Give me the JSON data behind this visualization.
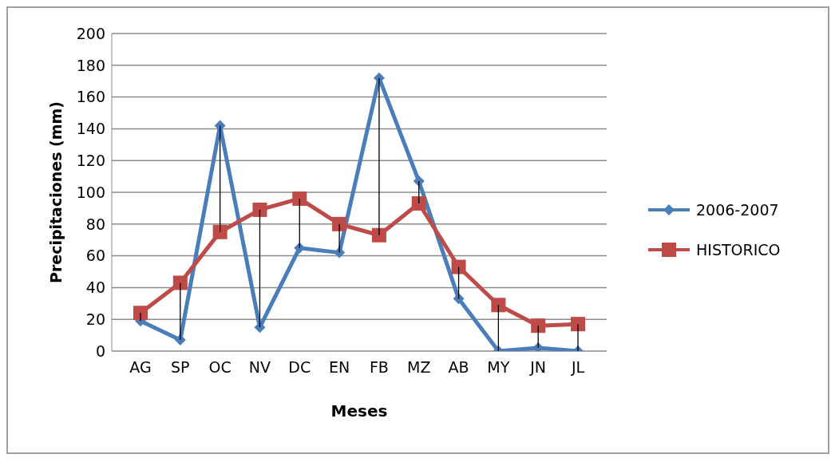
{
  "chart_data": {
    "type": "line",
    "xlabel": "Meses",
    "ylabel": "Precipitaciones (mm)",
    "categories": [
      "AG",
      "SP",
      "OC",
      "NV",
      "DC",
      "EN",
      "FB",
      "MZ",
      "AB",
      "MY",
      "JN",
      "JL"
    ],
    "series": [
      {
        "name": "2006-2007",
        "color": "#4a7ebb",
        "marker": "diamond",
        "values": [
          19,
          7,
          142,
          15,
          65,
          62,
          172,
          107,
          33,
          0,
          2,
          0
        ]
      },
      {
        "name": "HISTORICO",
        "color": "#be4b48",
        "marker": "square",
        "values": [
          24,
          43,
          75,
          89,
          96,
          80,
          73,
          93,
          53,
          29,
          16,
          17
        ],
        "errors": [
          [
            19,
            24
          ],
          [
            7,
            43
          ],
          [
            75,
            142
          ],
          [
            15,
            89
          ],
          [
            65,
            96
          ],
          [
            62,
            80
          ],
          [
            73,
            172
          ],
          [
            93,
            107
          ],
          [
            33,
            53
          ],
          [
            0,
            29
          ],
          [
            2,
            16
          ],
          [
            0,
            17
          ]
        ]
      }
    ],
    "ylim": [
      0,
      200
    ],
    "yticks": [
      0,
      20,
      40,
      60,
      80,
      100,
      120,
      140,
      160,
      180,
      200
    ],
    "grid": "y",
    "legend": "right",
    "line_style": "solid"
  }
}
